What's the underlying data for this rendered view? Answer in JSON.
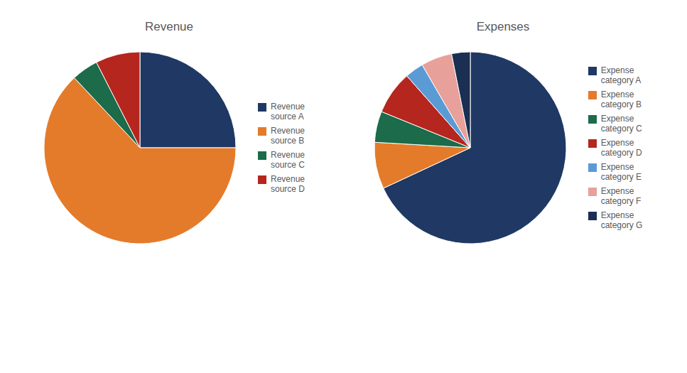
{
  "chart_data": [
    {
      "type": "pie",
      "title": "Revenue",
      "categories": [
        "Revenue\nsource A",
        "Revenue\nsource B",
        "Revenue\nsource C",
        "Revenue\nsource D"
      ],
      "values": [
        25,
        63,
        4.5,
        7.5
      ],
      "colors": [
        "#1F3864",
        "#E47B2A",
        "#1C6B4A",
        "#B5261E"
      ],
      "legend": "right"
    },
    {
      "type": "pie",
      "title": "Expenses",
      "categories": [
        "Expense\ncategory A",
        "Expense\ncategory B",
        "Expense\ncategory C",
        "Expense\ncategory D",
        "Expense\ncategory E",
        "Expense\ncategory F",
        "Expense\ncategory G"
      ],
      "values": [
        65,
        7.5,
        5,
        7,
        3,
        5,
        3
      ],
      "colors": [
        "#1F3864",
        "#E47B2A",
        "#1C6B4A",
        "#B5261E",
        "#5B9BD5",
        "#E8A09A",
        "#1A2F52"
      ],
      "legend": "right"
    }
  ]
}
